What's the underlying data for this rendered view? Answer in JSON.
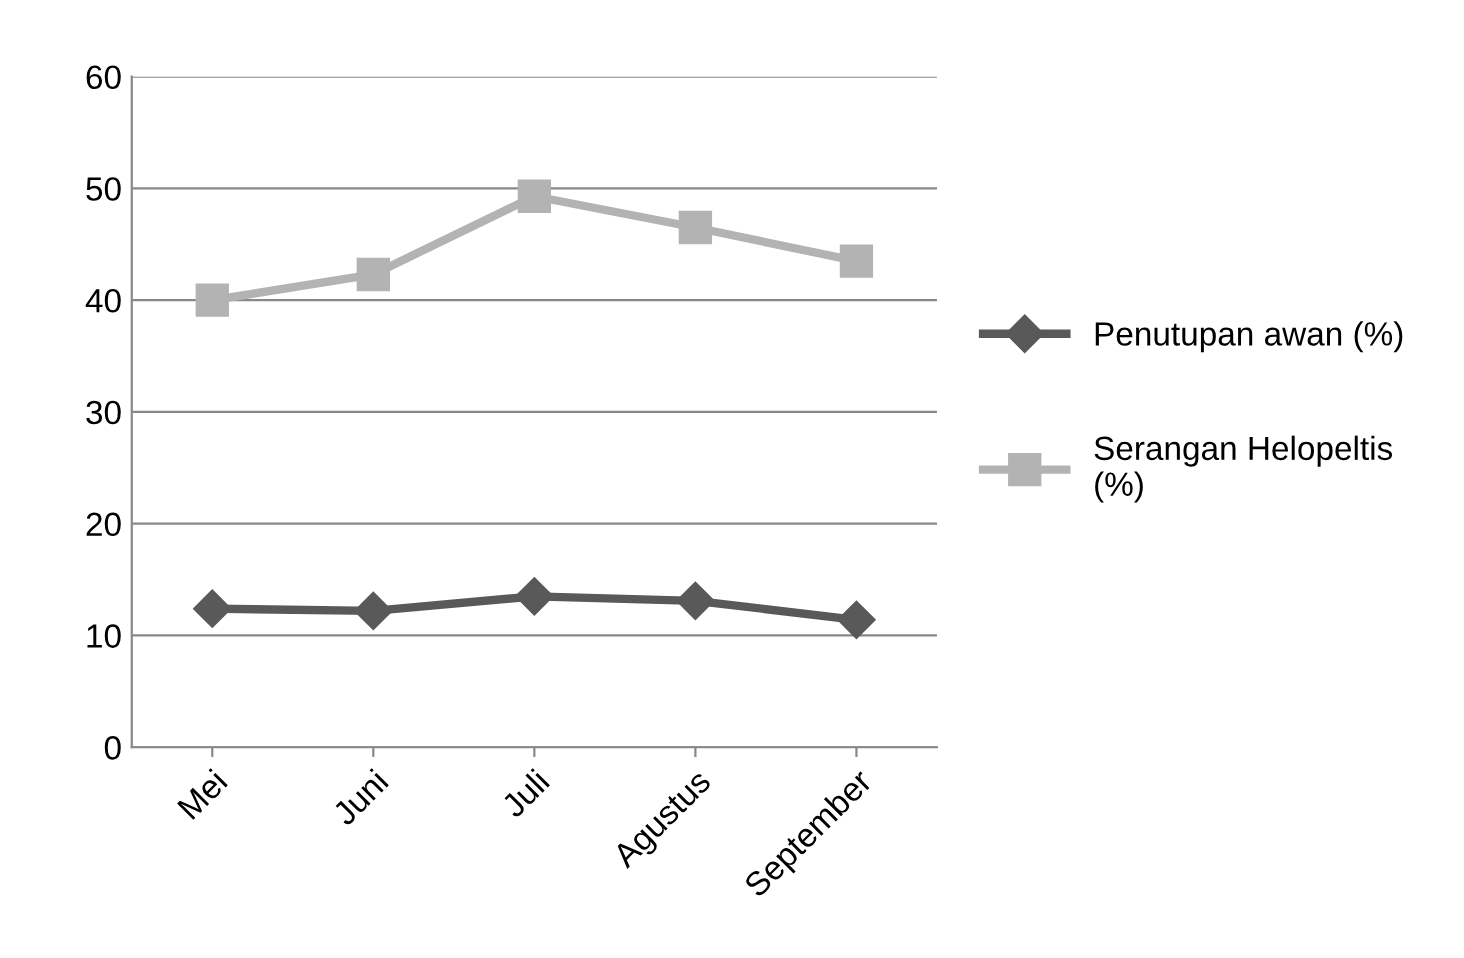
{
  "chart_data": {
    "type": "line",
    "categories": [
      "Mei",
      "Juni",
      "Juli",
      "Agustus",
      "September"
    ],
    "series": [
      {
        "name": "Penutupan awan (%)",
        "color": "#595959",
        "marker": "diamond",
        "values": [
          12.4,
          12.2,
          13.5,
          13.1,
          11.4
        ]
      },
      {
        "name": "Serangan Helopeltis (%)",
        "color": "#b3b3b3",
        "marker": "square",
        "values": [
          40.0,
          42.3,
          49.3,
          46.5,
          43.5
        ]
      }
    ],
    "ylim": [
      0,
      60
    ],
    "yticks": [
      0,
      10,
      20,
      30,
      40,
      50,
      60
    ],
    "grid": "y",
    "legend": "right",
    "line_style": "solid"
  }
}
